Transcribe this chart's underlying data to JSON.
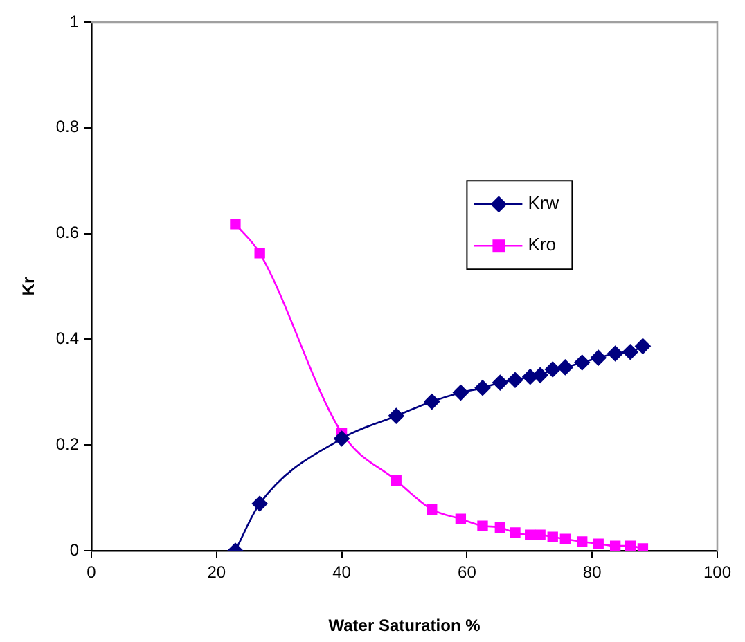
{
  "chart_data": {
    "type": "line",
    "xlabel": "Water Saturation %",
    "ylabel": "Kr",
    "xlim": [
      0,
      100
    ],
    "xticks": [
      0,
      20,
      40,
      60,
      80,
      100
    ],
    "ylim": [
      0,
      1
    ],
    "yticks": [
      0,
      0.2,
      0.4,
      0.6,
      0.8,
      1
    ],
    "grid": false,
    "legend": "right",
    "line_style": "solid",
    "series": [
      {
        "name": "Krw",
        "color": "#000080",
        "marker": "diamond",
        "x": [
          23,
          26.9,
          40,
          48.7,
          54.4,
          59,
          62.5,
          65.3,
          67.7,
          70.1,
          71.7,
          73.7,
          75.7,
          78.4,
          81,
          83.7,
          86.1,
          88.1
        ],
        "values": [
          0,
          0.089,
          0.212,
          0.255,
          0.282,
          0.299,
          0.308,
          0.318,
          0.323,
          0.329,
          0.332,
          0.343,
          0.347,
          0.356,
          0.365,
          0.373,
          0.376,
          0.387
        ]
      },
      {
        "name": "Kro",
        "color": "#ff00ff",
        "marker": "square",
        "x": [
          23,
          26.9,
          40,
          48.7,
          54.4,
          59,
          62.5,
          65.3,
          67.7,
          70.1,
          71.7,
          73.7,
          75.7,
          78.4,
          81,
          83.7,
          86.1,
          88.1
        ],
        "values": [
          0.618,
          0.563,
          0.223,
          0.133,
          0.078,
          0.06,
          0.047,
          0.044,
          0.034,
          0.03,
          0.03,
          0.026,
          0.022,
          0.017,
          0.013,
          0.009,
          0.009,
          0.004
        ]
      }
    ]
  }
}
